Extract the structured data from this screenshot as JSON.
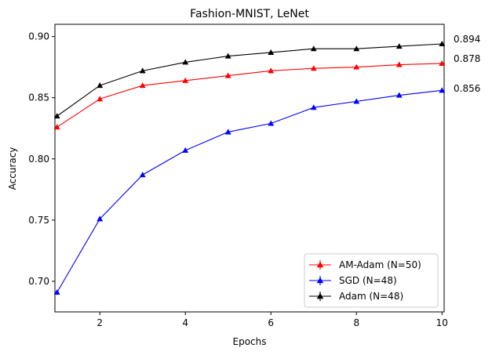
{
  "chart_data": {
    "type": "line",
    "title": "Fashion-MNIST, LeNet",
    "xlabel": "Epochs",
    "ylabel": "Accuracy",
    "xlim": [
      0.95,
      10.05
    ],
    "ylim": [
      0.675,
      0.91
    ],
    "xticks": [
      2,
      4,
      6,
      8,
      10
    ],
    "yticks": [
      0.7,
      0.75,
      0.8,
      0.85,
      0.9
    ],
    "ytick_labels": [
      "0.70",
      "0.75",
      "0.80",
      "0.85",
      "0.90"
    ],
    "x": [
      1,
      2,
      3,
      4,
      5,
      6,
      7,
      8,
      9,
      10
    ],
    "grid": false,
    "legend_position": "lower-right",
    "series": [
      {
        "name": "AM-Adam (N=50)",
        "color": "#ff0000",
        "marker": "triangle-up",
        "values": [
          0.826,
          0.849,
          0.86,
          0.864,
          0.868,
          0.872,
          0.874,
          0.875,
          0.877,
          0.878
        ]
      },
      {
        "name": "SGD (N=48)",
        "color": "#0000ff",
        "marker": "triangle-up",
        "values": [
          0.691,
          0.751,
          0.787,
          0.807,
          0.822,
          0.829,
          0.842,
          0.847,
          0.852,
          0.856
        ]
      },
      {
        "name": "Adam (N=48)",
        "color": "#000000",
        "marker": "triangle-up",
        "values": [
          0.835,
          0.86,
          0.872,
          0.879,
          0.884,
          0.887,
          0.89,
          0.89,
          0.892,
          0.894
        ]
      }
    ],
    "annotations": [
      "0.894",
      "0.878",
      "0.856"
    ]
  }
}
